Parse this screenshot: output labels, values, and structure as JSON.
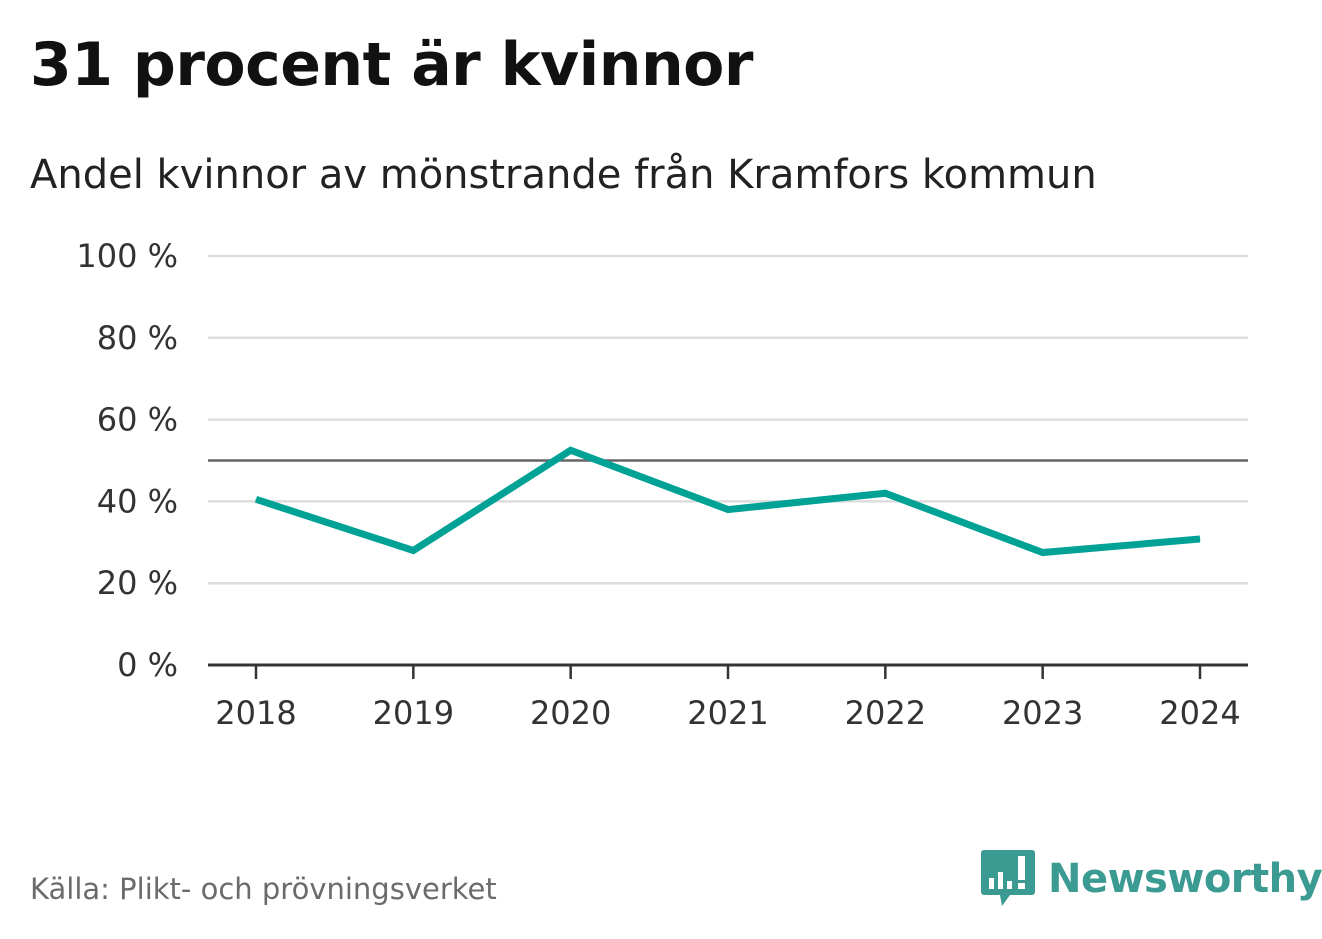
{
  "chart_data": {
    "type": "line",
    "title": "31 procent är kvinnor",
    "subtitle": "Andel kvinnor av mönstrande från Kramfors kommun",
    "x": [
      "2018",
      "2019",
      "2020",
      "2021",
      "2022",
      "2023",
      "2024"
    ],
    "series": [
      {
        "values": [
          40.5,
          28.0,
          52.5,
          38.0,
          42.0,
          27.5,
          30.8
        ],
        "color": "#00a295"
      }
    ],
    "ylim": [
      0,
      100
    ],
    "yticks": [
      0,
      20,
      40,
      60,
      80,
      100
    ],
    "ytick_labels": [
      "0 %",
      "20 %",
      "40 %",
      "60 %",
      "80 %",
      "100 %"
    ],
    "reference_line": 50,
    "reference_color": "#666666",
    "grid": true,
    "grid_color": "#dddddd",
    "source": "Källa: Plikt- och prövningsverket"
  },
  "brand": {
    "name": "Newsworthy",
    "icon": "bar-chart-speech-bubble-icon",
    "color": "#3b9b92"
  }
}
